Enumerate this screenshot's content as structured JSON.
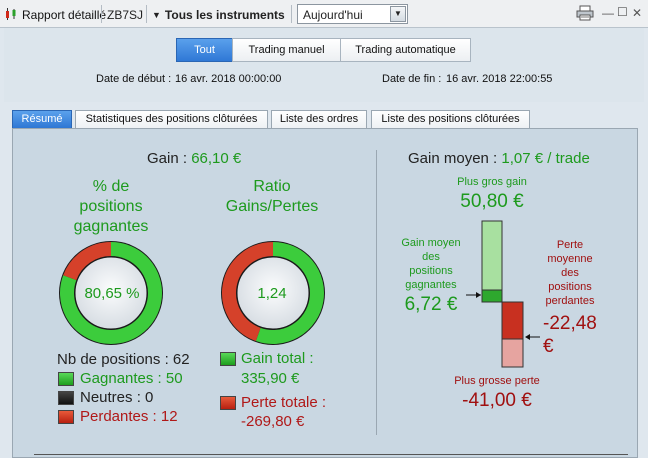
{
  "titlebar": {
    "title": "Rapport détaillé",
    "symbol": "ZB7SJ",
    "instruments": "Tous les instruments",
    "period": "Aujourd'hui"
  },
  "filters": {
    "all": "Tout",
    "manual": "Trading manuel",
    "auto": "Trading automatique"
  },
  "dates": {
    "start_label": "Date de début :",
    "start_value": "16 avr. 2018 00:00:00",
    "end_label": "Date de fin :",
    "end_value": "16 avr. 2018 22:00:55"
  },
  "tabs": [
    "Résumé",
    "Statistiques des positions clôturées",
    "Liste des ordres",
    "Liste des positions clôturées"
  ],
  "summary": {
    "gain_label": "Gain :",
    "gain_value": "66,10 €",
    "win_pct_title": [
      "% de",
      "positions",
      "gagnantes"
    ],
    "win_pct_value": "80,65 %",
    "win_pct_fraction": 0.8065,
    "ratio_title": [
      "Ratio",
      "Gains/Pertes"
    ],
    "ratio_value": "1,24",
    "ratio_gain_fraction": 0.5546,
    "positions_label": "Nb de positions : 62",
    "winners_label": "Gagnantes : 50",
    "neutral_label": "Neutres : 0",
    "losers_label": "Perdantes : 12",
    "total_gain_label": "Gain total :",
    "total_gain_value": "335,90 €",
    "total_loss_label": "Perte totale :",
    "total_loss_value": "-269,80 €"
  },
  "average": {
    "title_label": "Gain moyen :",
    "title_value": "1,07 € / trade",
    "biggest_gain_label": "Plus gros gain",
    "biggest_gain_value": "50,80 €",
    "avg_win_label": [
      "Gain moyen",
      "des",
      "positions",
      "gagnantes"
    ],
    "avg_win_value": "6,72 €",
    "avg_loss_label": [
      "Perte",
      "moyenne",
      "des",
      "positions",
      "perdantes"
    ],
    "avg_loss_value_line1": "-22,48",
    "avg_loss_value_line2": "€",
    "biggest_loss_label": "Plus grosse perte",
    "biggest_loss_value": "-41,00 €"
  },
  "colors": {
    "gain_green": "#1d9a1d",
    "loss_red": "#b01818",
    "accent_blue": "#2f78d6"
  }
}
